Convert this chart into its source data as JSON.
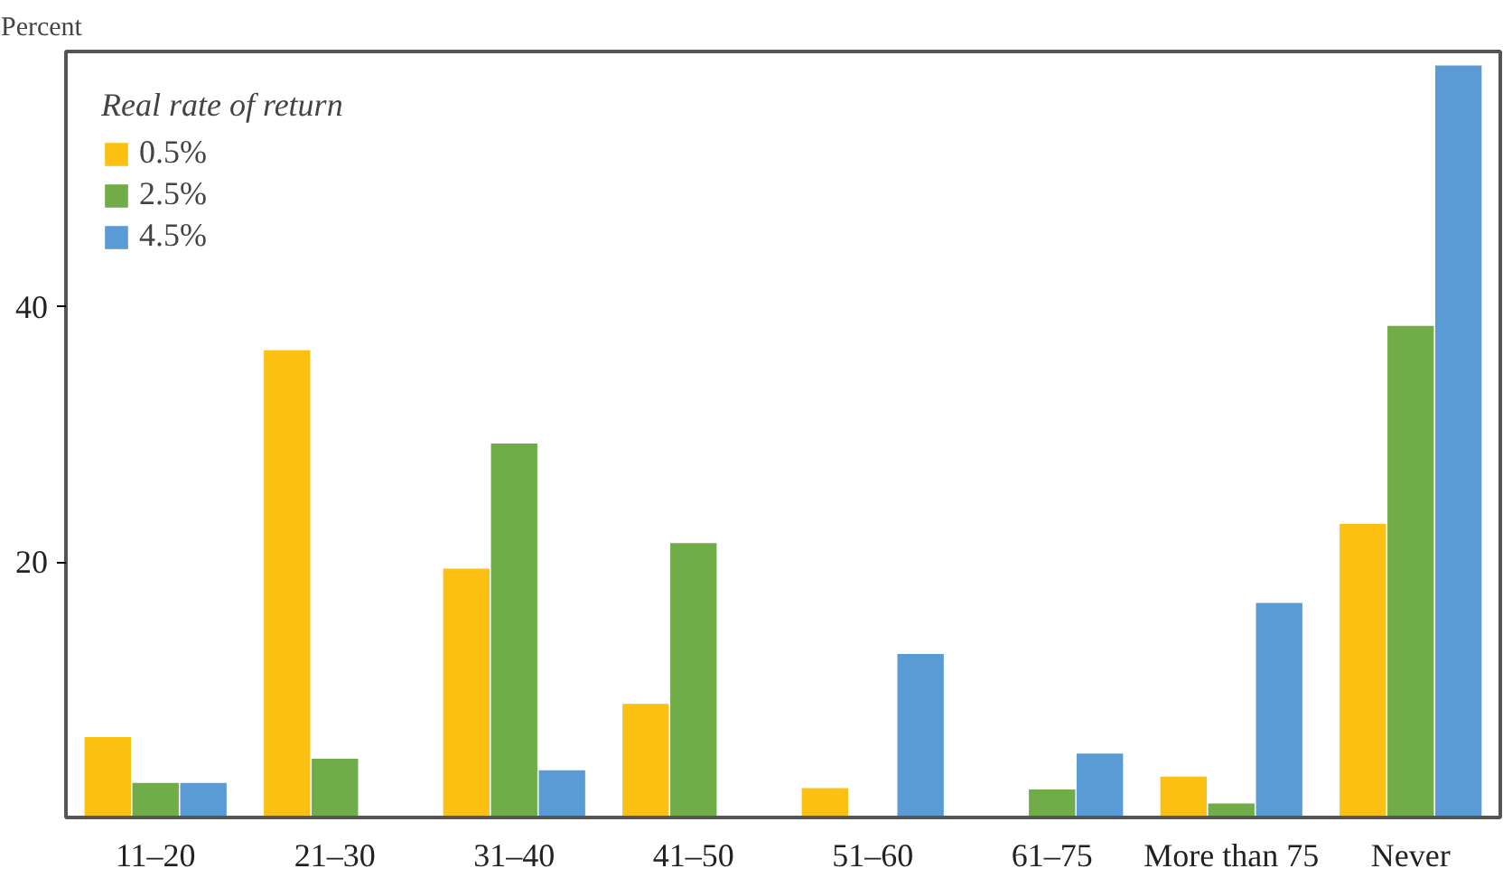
{
  "chart_data": {
    "type": "bar",
    "ylabel": "Percent",
    "legend_title": "Real rate of return",
    "categories": [
      "11–20",
      "21–30",
      "31–40",
      "41–50",
      "51–60",
      "61–75",
      "More than 75",
      "Never"
    ],
    "series": [
      {
        "name": "0.5%",
        "color": "#fbc012",
        "values": [
          6.3,
          36.6,
          19.5,
          8.9,
          2.3,
          null,
          3.2,
          23.0
        ]
      },
      {
        "name": "2.5%",
        "color": "#70ac47",
        "values": [
          2.7,
          4.6,
          29.3,
          21.5,
          null,
          2.2,
          1.1,
          38.5
        ]
      },
      {
        "name": "4.5%",
        "color": "#5b9bd5",
        "values": [
          2.7,
          null,
          3.7,
          null,
          12.8,
          5.0,
          16.8,
          58.9
        ]
      }
    ],
    "ylim": [
      0,
      60
    ],
    "yticks": [
      20,
      40
    ],
    "grid": false,
    "legend": "top left"
  }
}
